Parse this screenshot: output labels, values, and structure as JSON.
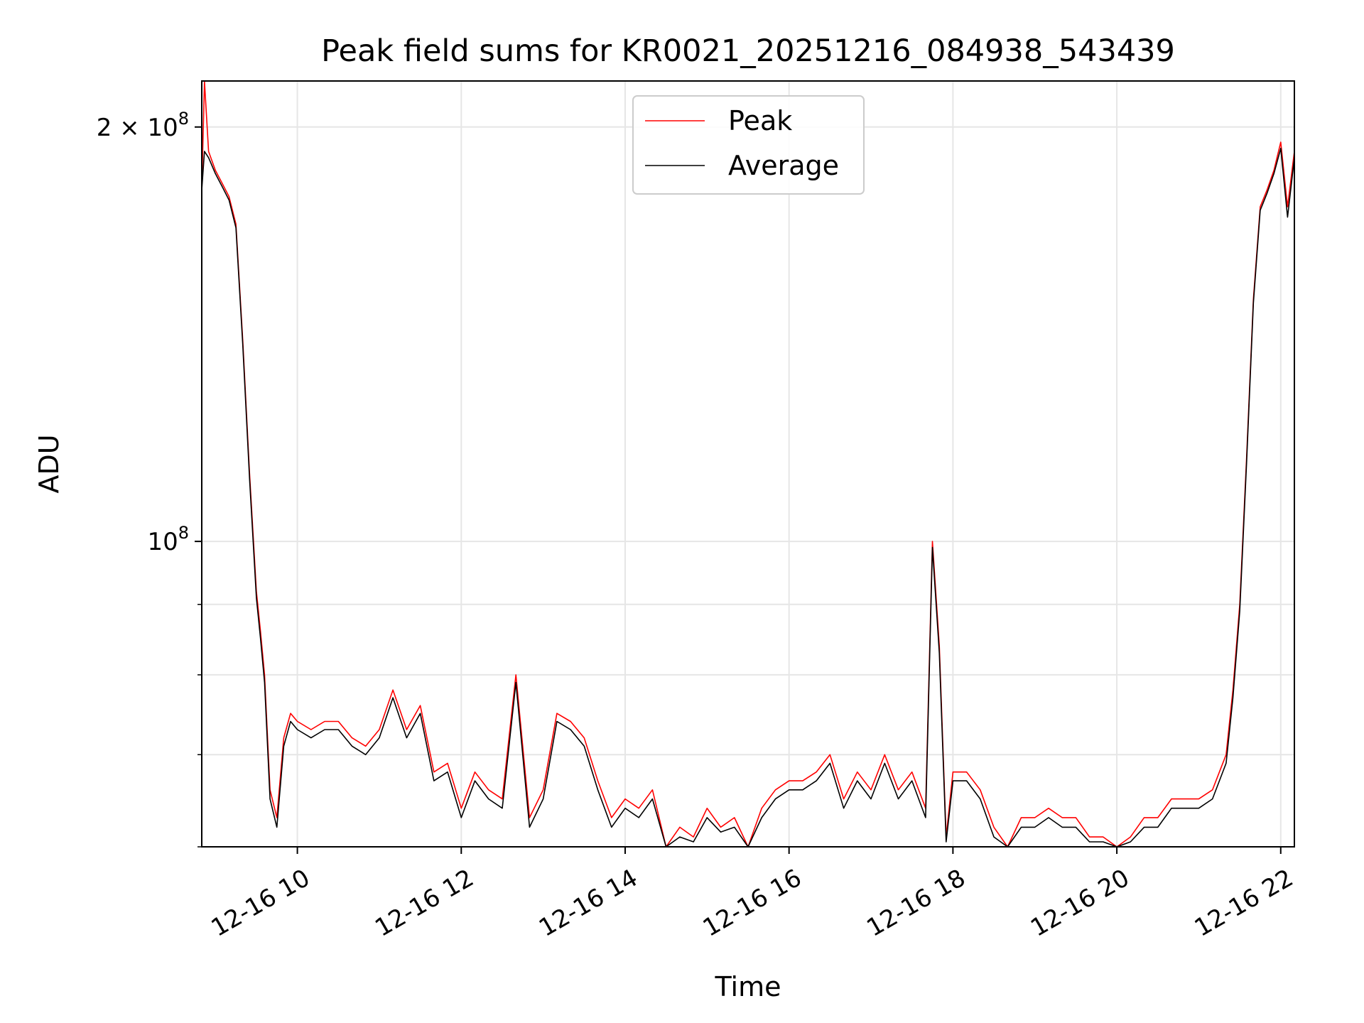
{
  "chart_data": {
    "type": "line",
    "title": "Peak field sums for KR0021_20251216_084938_543439",
    "xlabel": "Time",
    "ylabel": "ADU",
    "x_scale": "time",
    "y_scale": "log",
    "xlim": [
      "2025-12-16 08:50",
      "2025-12-16 22:10"
    ],
    "ylim": [
      60000000,
      216000000
    ],
    "x_ticks": [
      "12-16 10",
      "12-16 12",
      "12-16 14",
      "12-16 16",
      "12-16 18",
      "12-16 20",
      "12-16 22"
    ],
    "x_tick_values": [
      "2025-12-16 10:00",
      "2025-12-16 12:00",
      "2025-12-16 14:00",
      "2025-12-16 16:00",
      "2025-12-16 18:00",
      "2025-12-16 20:00",
      "2025-12-16 22:00"
    ],
    "y_major_ticks": [
      {
        "value": 100000000,
        "label_base": "10",
        "label_exp": "8"
      },
      {
        "value": 200000000,
        "label_base": "2 × 10",
        "label_exp": "8"
      }
    ],
    "y_minor_ticks": [
      60000000,
      70000000,
      80000000,
      90000000
    ],
    "grid": true,
    "legend_position": "upper center",
    "x": [
      "2025-12-16 08:50",
      "2025-12-16 08:52",
      "2025-12-16 08:55",
      "2025-12-16 09:00",
      "2025-12-16 09:05",
      "2025-12-16 09:10",
      "2025-12-16 09:15",
      "2025-12-16 09:20",
      "2025-12-16 09:25",
      "2025-12-16 09:30",
      "2025-12-16 09:33",
      "2025-12-16 09:36",
      "2025-12-16 09:40",
      "2025-12-16 09:45",
      "2025-12-16 09:50",
      "2025-12-16 09:55",
      "2025-12-16 10:00",
      "2025-12-16 10:10",
      "2025-12-16 10:20",
      "2025-12-16 10:30",
      "2025-12-16 10:40",
      "2025-12-16 10:50",
      "2025-12-16 11:00",
      "2025-12-16 11:10",
      "2025-12-16 11:20",
      "2025-12-16 11:30",
      "2025-12-16 11:40",
      "2025-12-16 11:50",
      "2025-12-16 12:00",
      "2025-12-16 12:10",
      "2025-12-16 12:20",
      "2025-12-16 12:30",
      "2025-12-16 12:40",
      "2025-12-16 12:50",
      "2025-12-16 13:00",
      "2025-12-16 13:10",
      "2025-12-16 13:20",
      "2025-12-16 13:30",
      "2025-12-16 13:40",
      "2025-12-16 13:50",
      "2025-12-16 14:00",
      "2025-12-16 14:10",
      "2025-12-16 14:20",
      "2025-12-16 14:30",
      "2025-12-16 14:40",
      "2025-12-16 14:50",
      "2025-12-16 15:00",
      "2025-12-16 15:10",
      "2025-12-16 15:20",
      "2025-12-16 15:30",
      "2025-12-16 15:40",
      "2025-12-16 15:50",
      "2025-12-16 16:00",
      "2025-12-16 16:10",
      "2025-12-16 16:20",
      "2025-12-16 16:30",
      "2025-12-16 16:40",
      "2025-12-16 16:50",
      "2025-12-16 17:00",
      "2025-12-16 17:10",
      "2025-12-16 17:20",
      "2025-12-16 17:30",
      "2025-12-16 17:40",
      "2025-12-16 17:45",
      "2025-12-16 17:50",
      "2025-12-16 17:55",
      "2025-12-16 18:00",
      "2025-12-16 18:10",
      "2025-12-16 18:20",
      "2025-12-16 18:30",
      "2025-12-16 18:40",
      "2025-12-16 18:50",
      "2025-12-16 19:00",
      "2025-12-16 19:10",
      "2025-12-16 19:20",
      "2025-12-16 19:30",
      "2025-12-16 19:40",
      "2025-12-16 19:50",
      "2025-12-16 20:00",
      "2025-12-16 20:10",
      "2025-12-16 20:20",
      "2025-12-16 20:30",
      "2025-12-16 20:40",
      "2025-12-16 20:50",
      "2025-12-16 21:00",
      "2025-12-16 21:10",
      "2025-12-16 21:20",
      "2025-12-16 21:25",
      "2025-12-16 21:30",
      "2025-12-16 21:35",
      "2025-12-16 21:40",
      "2025-12-16 21:45",
      "2025-12-16 21:50",
      "2025-12-16 21:55",
      "2025-12-16 22:00",
      "2025-12-16 22:05",
      "2025-12-16 22:10"
    ],
    "series": [
      {
        "name": "Peak",
        "color": "#ff0000",
        "values": [
          180000000,
          216000000,
          192000000,
          186000000,
          182000000,
          178000000,
          170000000,
          140000000,
          112000000,
          92000000,
          86000000,
          80000000,
          66000000,
          63000000,
          72000000,
          75000000,
          74000000,
          73000000,
          74000000,
          74000000,
          72000000,
          71000000,
          73000000,
          78000000,
          73000000,
          76000000,
          68000000,
          69000000,
          64000000,
          68000000,
          66000000,
          65000000,
          80000000,
          63000000,
          66000000,
          75000000,
          74000000,
          72000000,
          67000000,
          63000000,
          65000000,
          64000000,
          66000000,
          60000000,
          62000000,
          61000000,
          64000000,
          62000000,
          63000000,
          60000000,
          64000000,
          66000000,
          67000000,
          67000000,
          68000000,
          70000000,
          65000000,
          68000000,
          66000000,
          70000000,
          66000000,
          68000000,
          64000000,
          100000000,
          84000000,
          61000000,
          68000000,
          68000000,
          66000000,
          62000000,
          60000000,
          63000000,
          63000000,
          64000000,
          63000000,
          63000000,
          61000000,
          61000000,
          60000000,
          61000000,
          63000000,
          63000000,
          65000000,
          65000000,
          65000000,
          66000000,
          70000000,
          78000000,
          90000000,
          115000000,
          150000000,
          175000000,
          180000000,
          186000000,
          195000000,
          175000000,
          192000000
        ]
      },
      {
        "name": "Average",
        "color": "#000000",
        "values": [
          180000000,
          192000000,
          190000000,
          185000000,
          181000000,
          177000000,
          169000000,
          139000000,
          111000000,
          91000000,
          85000000,
          79000000,
          65000000,
          62000000,
          71000000,
          74000000,
          73000000,
          72000000,
          73000000,
          73000000,
          71000000,
          70000000,
          72000000,
          77000000,
          72000000,
          75000000,
          67000000,
          68000000,
          63000000,
          67000000,
          65000000,
          64000000,
          79000000,
          62000000,
          65000000,
          74000000,
          73000000,
          71000000,
          66000000,
          62000000,
          64000000,
          63000000,
          65000000,
          59500000,
          61000000,
          60500000,
          63000000,
          61500000,
          62000000,
          59500000,
          63000000,
          65000000,
          66000000,
          66000000,
          67000000,
          69000000,
          64000000,
          67000000,
          65000000,
          69000000,
          65000000,
          67000000,
          63000000,
          99000000,
          83000000,
          60500000,
          67000000,
          67000000,
          65000000,
          61000000,
          59500000,
          62000000,
          62000000,
          63000000,
          62000000,
          62000000,
          60500000,
          60500000,
          59500000,
          60500000,
          62000000,
          62000000,
          64000000,
          64000000,
          64000000,
          65000000,
          69000000,
          77000000,
          89000000,
          114000000,
          149000000,
          174000000,
          179000000,
          185000000,
          193000000,
          172000000,
          190000000
        ]
      }
    ]
  }
}
